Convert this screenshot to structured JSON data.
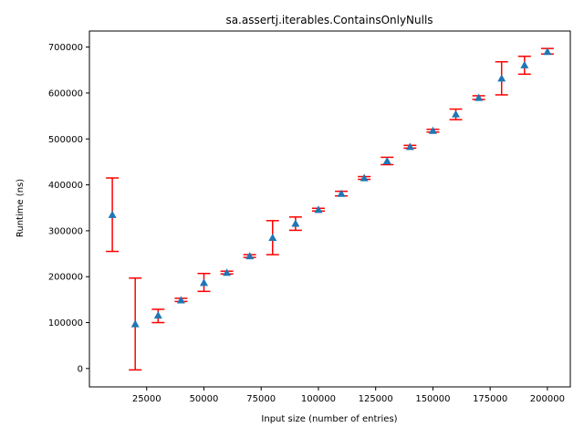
{
  "chart_data": {
    "type": "scatter",
    "title": "sa.assertj.iterables.ContainsOnlyNulls",
    "xlabel": "Input size (number of entries)",
    "ylabel": "Runtime (ns)",
    "xlim": [
      0,
      210000
    ],
    "ylim": [
      -40000,
      735000
    ],
    "xticks": [
      25000,
      50000,
      75000,
      100000,
      125000,
      150000,
      175000,
      200000
    ],
    "xtick_labels": [
      "25000",
      "50000",
      "75000",
      "100000",
      "125000",
      "150000",
      "175000",
      "200000"
    ],
    "yticks": [
      0,
      100000,
      200000,
      300000,
      400000,
      500000,
      600000,
      700000
    ],
    "ytick_labels": [
      "0",
      "100000",
      "200000",
      "300000",
      "400000",
      "500000",
      "600000",
      "700000"
    ],
    "grid": false,
    "marker_color": "#1f77b4",
    "errorbar_color": "#ff0000",
    "marker": "triangle",
    "points": [
      {
        "x": 10000,
        "y": 335000,
        "lo": 255000,
        "hi": 415000
      },
      {
        "x": 20000,
        "y": 97000,
        "lo": -3000,
        "hi": 197000
      },
      {
        "x": 30000,
        "y": 116000,
        "lo": 100000,
        "hi": 129000
      },
      {
        "x": 40000,
        "y": 149000,
        "lo": 146000,
        "hi": 153000
      },
      {
        "x": 50000,
        "y": 187000,
        "lo": 168000,
        "hi": 207000
      },
      {
        "x": 60000,
        "y": 209000,
        "lo": 206000,
        "hi": 212000
      },
      {
        "x": 70000,
        "y": 245000,
        "lo": 242000,
        "hi": 248000
      },
      {
        "x": 80000,
        "y": 285000,
        "lo": 248000,
        "hi": 322000
      },
      {
        "x": 90000,
        "y": 316000,
        "lo": 301000,
        "hi": 330000
      },
      {
        "x": 100000,
        "y": 346000,
        "lo": 343000,
        "hi": 349000
      },
      {
        "x": 110000,
        "y": 381000,
        "lo": 376000,
        "hi": 386000
      },
      {
        "x": 120000,
        "y": 415000,
        "lo": 412000,
        "hi": 418000
      },
      {
        "x": 130000,
        "y": 452000,
        "lo": 444000,
        "hi": 460000
      },
      {
        "x": 140000,
        "y": 483000,
        "lo": 480000,
        "hi": 486000
      },
      {
        "x": 150000,
        "y": 518000,
        "lo": 515000,
        "hi": 521000
      },
      {
        "x": 160000,
        "y": 554000,
        "lo": 542000,
        "hi": 565000
      },
      {
        "x": 170000,
        "y": 590000,
        "lo": 586000,
        "hi": 594000
      },
      {
        "x": 180000,
        "y": 632000,
        "lo": 596000,
        "hi": 668000
      },
      {
        "x": 190000,
        "y": 661000,
        "lo": 641000,
        "hi": 680000
      },
      {
        "x": 200000,
        "y": 690000,
        "lo": 685000,
        "hi": 697000
      }
    ]
  }
}
